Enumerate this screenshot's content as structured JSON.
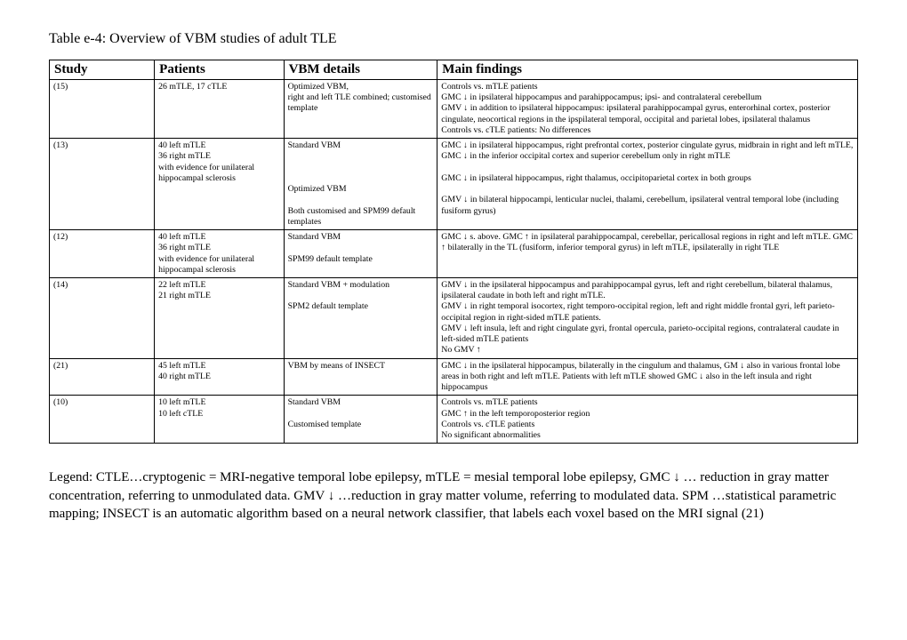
{
  "title": "Table e-4: Overview of VBM studies of adult TLE",
  "headers": [
    "Study",
    "Patients",
    "VBM details",
    "Main findings"
  ],
  "rows": [
    {
      "study": "(15)",
      "patients": "26 mTLE, 17 cTLE",
      "vbm": "Optimized VBM,\nright and left TLE combined; customised template",
      "findings": "Controls vs. mTLE patients\nGMC ↓ in ipsilateral hippocampus and parahippocampus; ipsi- and contralateral cerebellum\nGMV ↓ in addition to ipsilateral hippocampus: ipsilateral parahippocampal gyrus, enterorhinal cortex, posterior cingulate, neocortical regions in the ipspilateral temporal, occipital and parietal lobes, ipsilateral thalamus\nControls vs. cTLE patients: No differences\n "
    },
    {
      "study": "(13)",
      "patients": "40 left mTLE\n36 right mTLE\nwith evidence for unilateral hippocampal sclerosis",
      "vbm": "Standard VBM\n\n\n\nOptimized VBM\n\nBoth customised and SPM99 default templates\n ",
      "findings": "GMC ↓ in ipsilateral hippocampus, right prefrontal cortex, posterior cingulate gyrus, midbrain in right and left mTLE, GMC ↓ in the inferior occipital cortex and superior cerebellum only in right mTLE\n\nGMC ↓ in ipsilateral hippocampus, right thalamus, occipitoparietal cortex in both groups\n\nGMV ↓ in bilateral hippocampi, lenticular nuclei, thalami, cerebellum, ipsilateral ventral temporal lobe (including fusiform gyrus)\n\n "
    },
    {
      "study": "(12)",
      "patients": "40 left mTLE\n36 right mTLE\nwith evidence for unilateral hippocampal sclerosis",
      "vbm": "Standard VBM\n\nSPM99 default template",
      "findings": "GMC ↓ s. above. GMC ↑ in ipsilateral parahippocampal, cerebellar, pericallosal regions in right and left mTLE.  GMC ↑ bilaterally in the TL (fusiform, inferior temporal gyrus) in left mTLE, ipsilaterally in right TLE"
    },
    {
      "study": "(14)  ",
      "patients": "22 left mTLE\n21 right mTLE",
      "vbm": "Standard VBM  + modulation\n\nSPM2 default template",
      "findings": "GMV ↓ in the ipsilateral hippocampus and parahippocampal gyrus, left and right cerebellum, bilateral thalamus, ipsilateral caudate in both left and right mTLE.\nGMV ↓ in right temporal isocortex, right temporo-occipital region, left and right middle frontal gyri, left parieto-occipital region in right-sided mTLE patients.\nGMV ↓ left insula, left and right cingulate gyri, frontal opercula, parieto-occipital regions, contralateral caudate in left-sided mTLE patients\nNo GMV ↑"
    },
    {
      "study": "(21)",
      "patients": "45 left mTLE\n40 right mTLE",
      "vbm": "VBM by means of INSECT",
      "findings": "GMC ↓ in the ipsilateral hippocampus, bilaterally in the cingulum and thalamus, GM ↓ also in various frontal lobe areas in both right and left mTLE. Patients with left mTLE showed GMC ↓ also in the left insula and right hippocampus"
    },
    {
      "study": "(10)",
      "patients": "10 left mTLE\n10 left cTLE",
      "vbm": "Standard VBM\n\nCustomised template",
      "findings": "Controls vs. mTLE patients\nGMC ↑ in the left temporoposterior region\nControls vs. cTLE patients\nNo significant abnormalities"
    }
  ],
  "legend": "Legend: CTLE…cryptogenic = MRI-negative temporal lobe epilepsy, mTLE = mesial temporal lobe epilepsy, GMC ↓ … reduction in gray matter concentration, referring to unmodulated data. GMV ↓ …reduction in gray matter volume, referring to modulated data. SPM …statistical parametric mapping; INSECT is an automatic algorithm based on a neural network classifier, that labels each voxel based on the MRI signal (21)"
}
